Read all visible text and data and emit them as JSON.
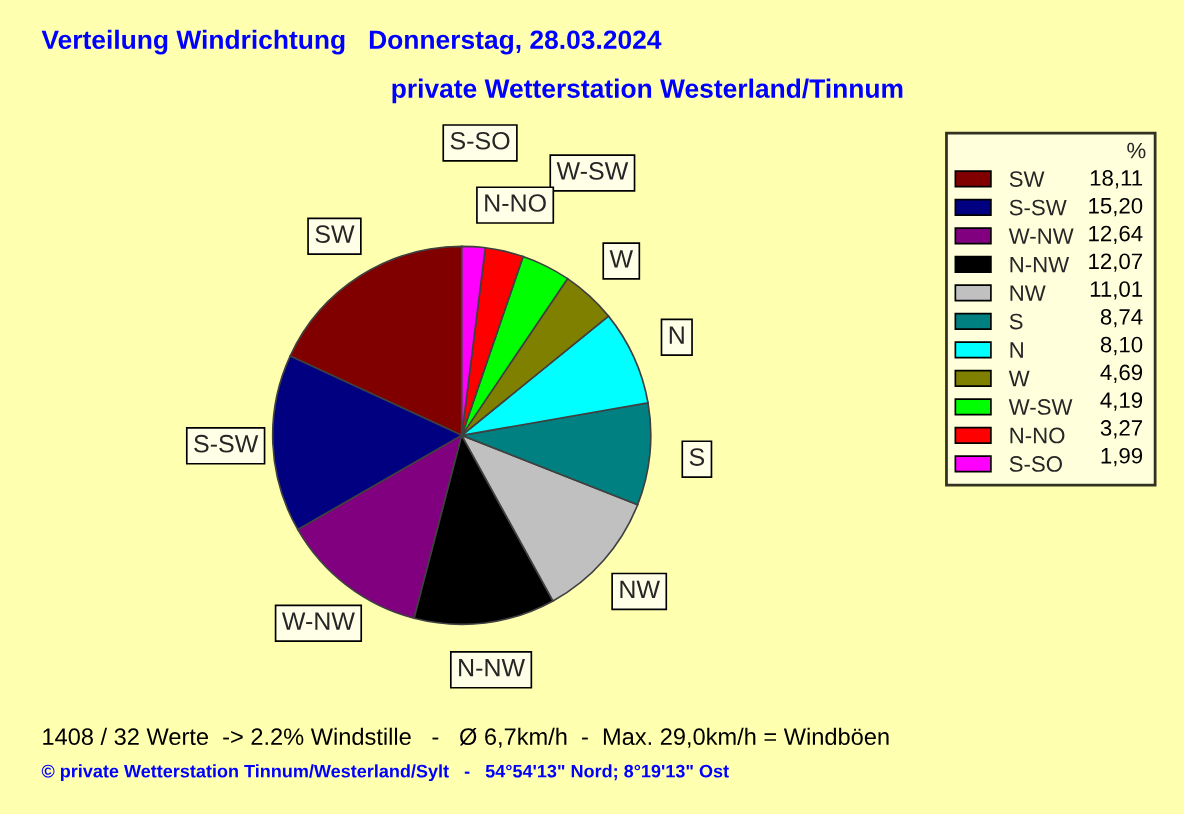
{
  "chart_data": {
    "type": "pie",
    "title": "Verteilung Windrichtung   Donnerstag, 28.03.2024",
    "subtitle": "private Wetterstation Westerland/Tinnum",
    "categories": [
      "SW",
      "S-SW",
      "W-NW",
      "N-NW",
      "NW",
      "S",
      "N",
      "W",
      "W-SW",
      "N-NO",
      "S-SO"
    ],
    "values": [
      18.11,
      15.2,
      12.64,
      12.07,
      11.01,
      8.74,
      8.1,
      4.69,
      4.19,
      3.27,
      1.99
    ],
    "value_labels": [
      "18,11",
      "15,20",
      "12,64",
      "12,07",
      "11,01",
      "8,74",
      "8,10",
      "4,69",
      "4,19",
      "3,27",
      "1,99"
    ],
    "colors": [
      "#800000",
      "#000080",
      "#800080",
      "#000000",
      "#c0c0c0",
      "#008080",
      "#00ffff",
      "#808000",
      "#00ff00",
      "#ff0000",
      "#ff00ff"
    ],
    "legend_title": "%",
    "legend": "right",
    "annotations": [
      "1408 / 32 Werte  -> 2.2% Windstille   -   Ø 6,7km/h  -  Max. 29,0km/h = Windböen",
      "© private Wetterstation Tinnum/Westerland/Sylt   -   54°54'13\" Nord; 8°19'13\" Ost"
    ]
  }
}
